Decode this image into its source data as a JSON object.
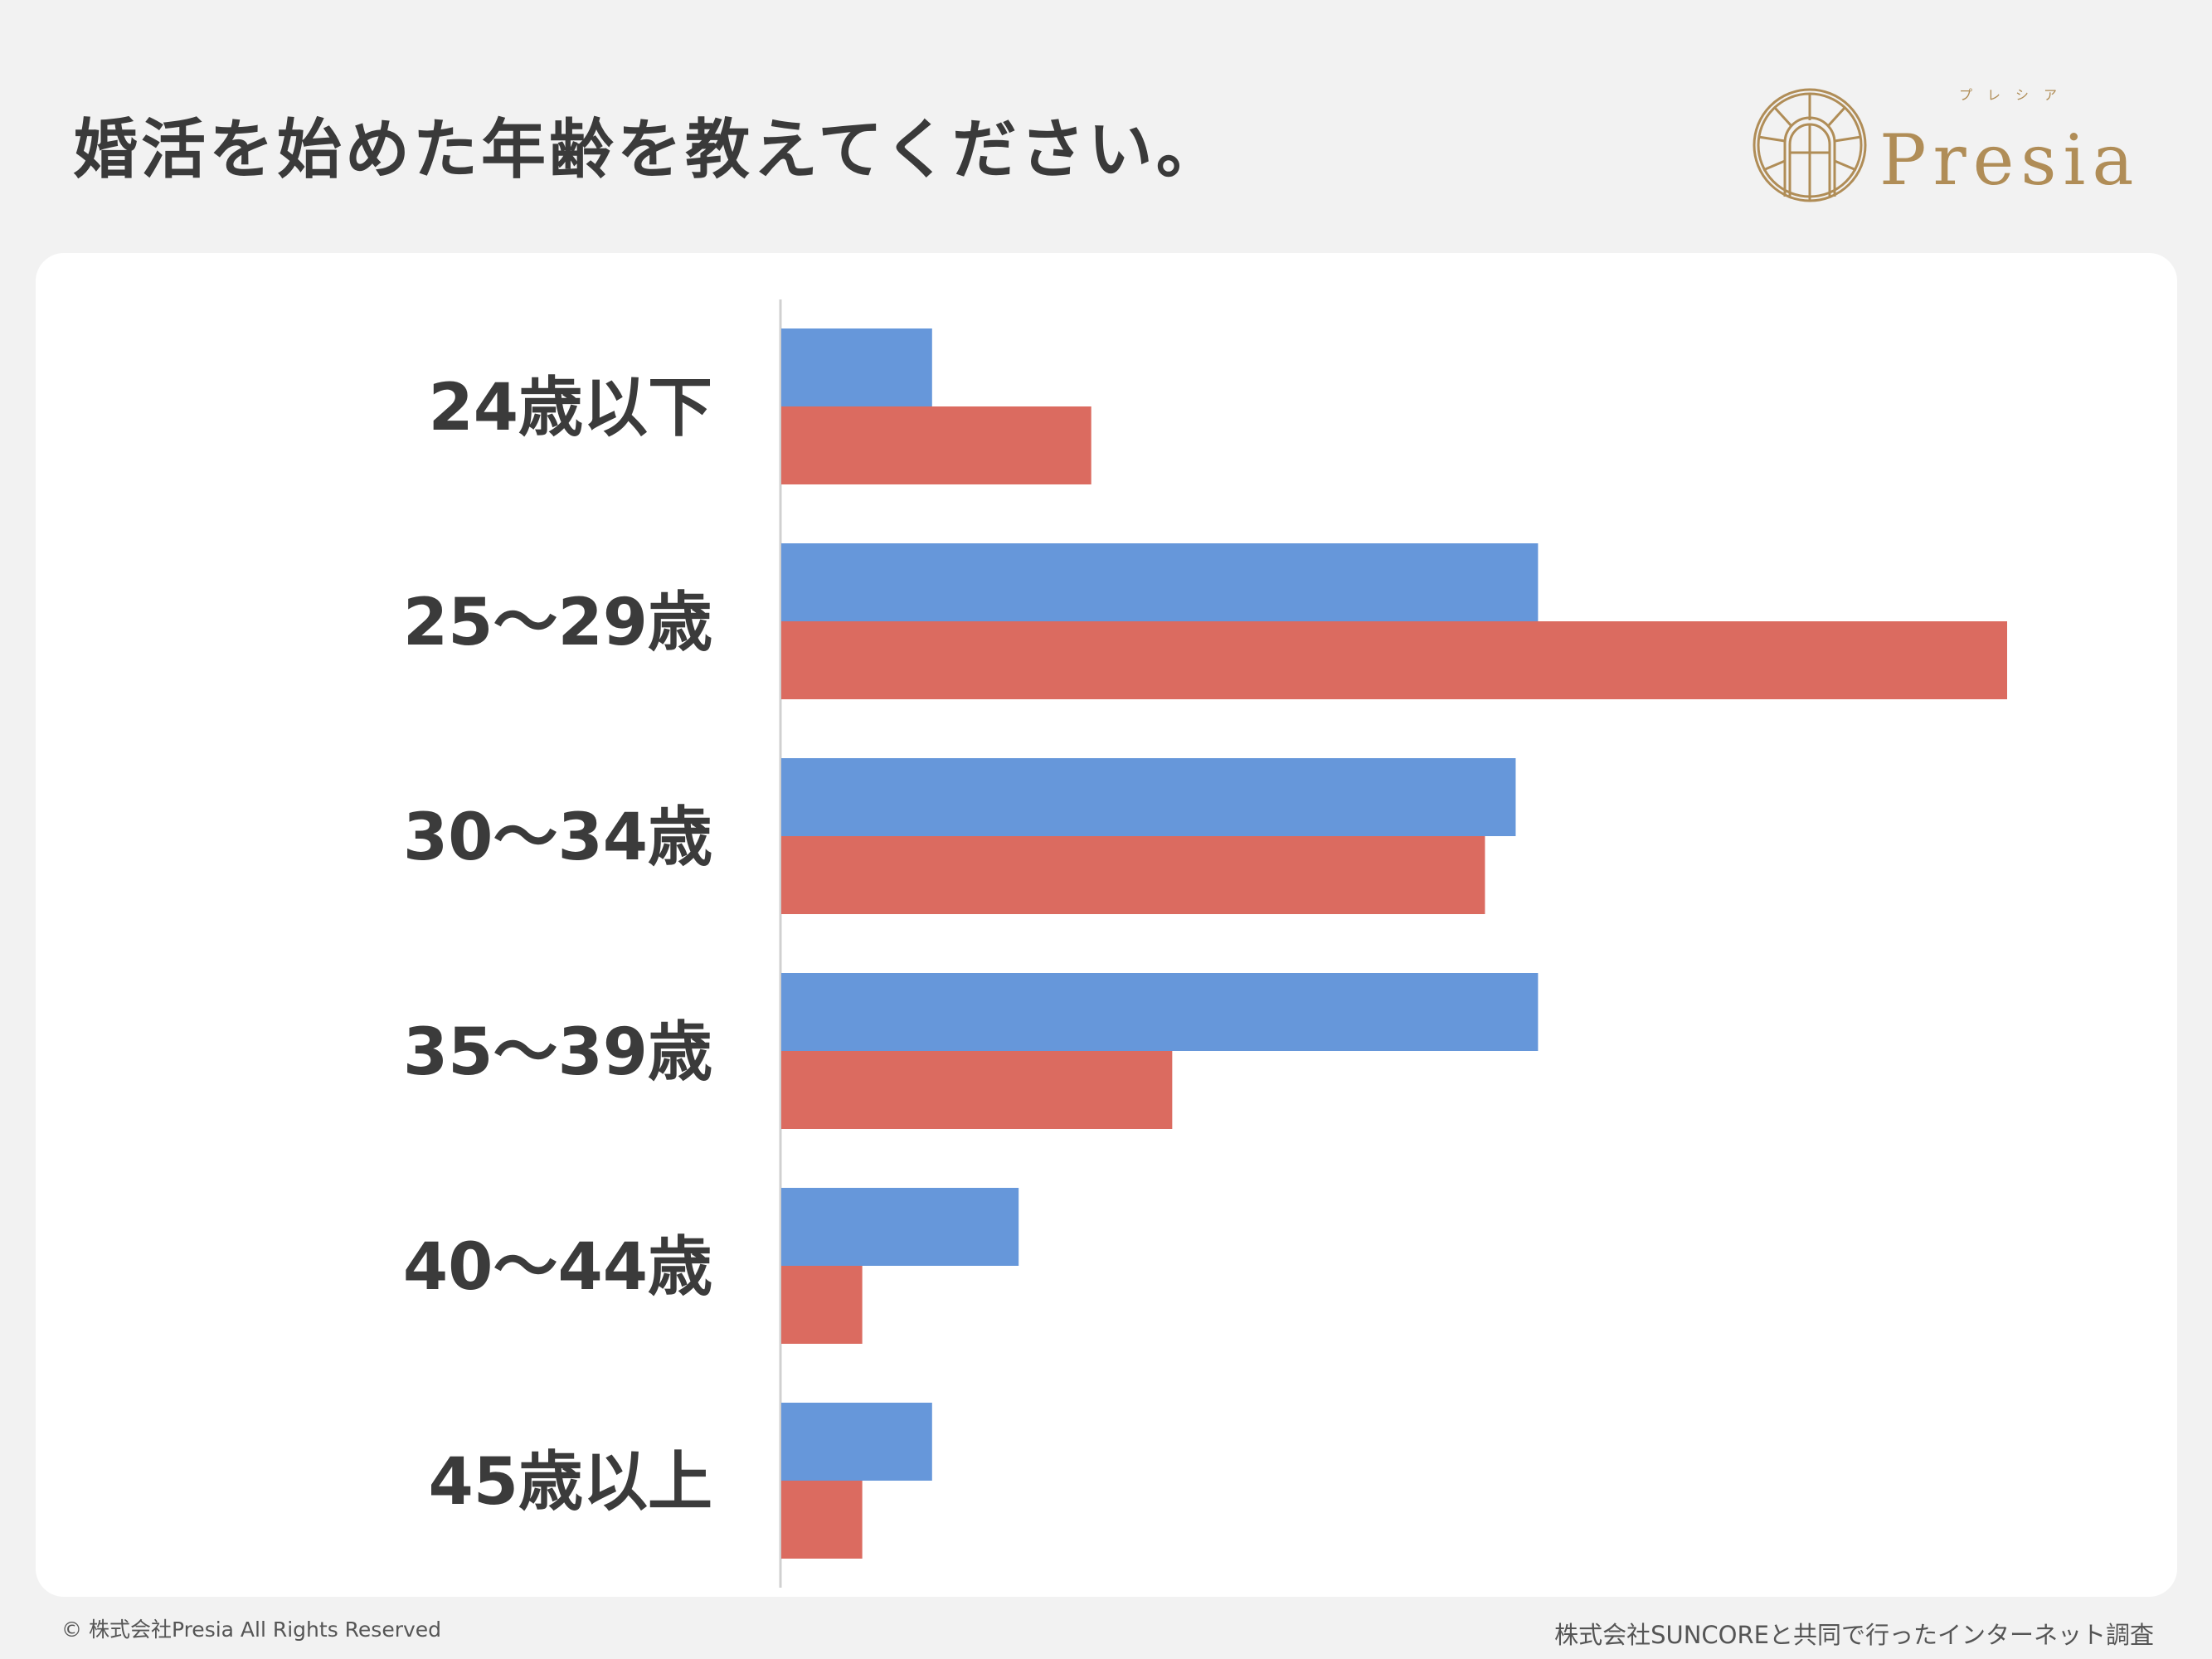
{
  "title": "婚活を始めた年齢を教えてください。",
  "logo": {
    "text": "Presia",
    "ruby": "プレシア",
    "color": "#b08d57"
  },
  "footer": {
    "copyright": "© 株式会社Presia All Rights Reserved",
    "source": "株式会社SUNCOREと共同で行ったインターネット調査"
  },
  "chart_data": {
    "type": "bar",
    "orientation": "horizontal",
    "categories": [
      "24歳以下",
      "25〜29歳",
      "30〜34歳",
      "35〜39歳",
      "40〜44歳",
      "45歳以上"
    ],
    "series": [
      {
        "color": "#6697da",
        "values": [
          5.4,
          27.1,
          26.3,
          27.1,
          8.5,
          5.4
        ]
      },
      {
        "color": "#db6b60",
        "values": [
          11.1,
          43.9,
          25.2,
          14.0,
          2.9,
          2.9
        ]
      }
    ],
    "xlim": [
      0,
      50
    ],
    "grid": false,
    "legend": "none"
  }
}
